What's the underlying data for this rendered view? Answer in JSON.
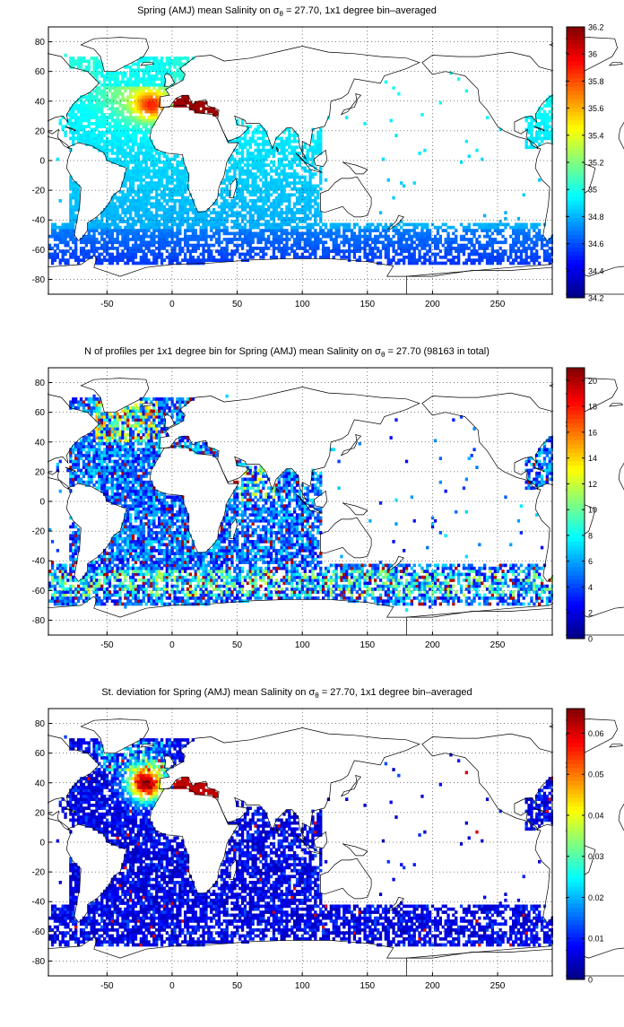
{
  "maps": [
    {
      "title_pre": "Spring (AMJ) mean Salinity on σ",
      "title_sub": "θ",
      "title_post": " = 27.70, 1x1 degree bin–averaged",
      "colorbar": {
        "min": 34.2,
        "max": 36.2,
        "ticks": [
          "34.2",
          "34.4",
          "34.6",
          "34.8",
          "35",
          "35.2",
          "35.4",
          "35.6",
          "35.8",
          "36",
          "36.2"
        ]
      },
      "colormap": "jet",
      "field": "salinity"
    },
    {
      "title_pre": "N of profiles per 1x1 degree bin for Spring (AMJ) mean Salinity on σ",
      "title_sub": "θ",
      "title_post": " = 27.70 (98163 in total)",
      "colorbar": {
        "min": 0,
        "max": 21,
        "ticks": [
          "0",
          "2",
          "4",
          "6",
          "8",
          "10",
          "12",
          "14",
          "16",
          "18",
          "20"
        ]
      },
      "colormap": "jet",
      "field": "count"
    },
    {
      "title_pre": "St. deviation for Spring (AMJ) mean Salinity on σ",
      "title_sub": "θ",
      "title_post": " = 27.70, 1x1 degree bin–averaged",
      "colorbar": {
        "min": 0,
        "max": 0.066,
        "ticks": [
          "0",
          "0.01",
          "0.02",
          "0.03",
          "0.04",
          "0.05",
          "0.06"
        ]
      },
      "colormap": "jet",
      "field": "stdev"
    }
  ],
  "axes": {
    "x_range": [
      -95,
      292
    ],
    "y_range": [
      -90,
      90
    ],
    "x_ticks": [
      "-50",
      "0",
      "50",
      "100",
      "150",
      "200",
      "250"
    ],
    "y_ticks": [
      "80",
      "60",
      "40",
      "20",
      "0",
      "-20",
      "-40",
      "-60",
      "-80"
    ],
    "grid": "dotted"
  }
}
